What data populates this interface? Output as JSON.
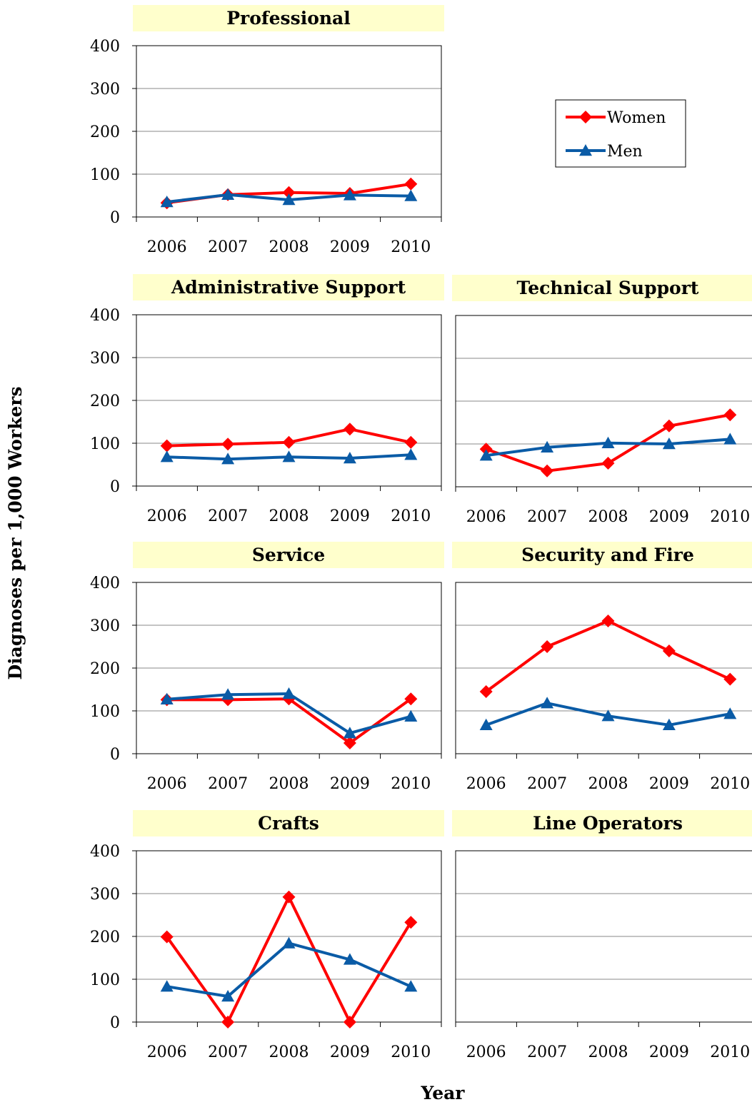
{
  "ylabel": "Diagnoses per 1,000 Workers",
  "xlabel": "Year",
  "legend": {
    "placement": "top-right",
    "items": [
      {
        "label": "Women",
        "color": "#ff0000",
        "marker": "diamond"
      },
      {
        "label": "Men",
        "color": "#0a5ba6",
        "marker": "triangle"
      }
    ]
  },
  "colors": {
    "title_bg": "#ffffcc",
    "women": "#ff0000",
    "men": "#0a5ba6",
    "grid": "#888888"
  },
  "chart_data": [
    {
      "type": "line",
      "title": "Professional",
      "categories": [
        "2006",
        "2007",
        "2008",
        "2009",
        "2010"
      ],
      "yticks": [
        0,
        100,
        200,
        300,
        400
      ],
      "ylim": [
        0,
        400
      ],
      "grid": true,
      "series": [
        {
          "name": "Women",
          "values": [
            33,
            52,
            57,
            55,
            77
          ]
        },
        {
          "name": "Men",
          "values": [
            35,
            52,
            40,
            51,
            49
          ]
        }
      ]
    },
    {
      "type": "line",
      "title": "Administrative Support",
      "categories": [
        "2006",
        "2007",
        "2008",
        "2009",
        "2010"
      ],
      "yticks": [
        0,
        100,
        200,
        300,
        400
      ],
      "ylim": [
        0,
        400
      ],
      "grid": true,
      "series": [
        {
          "name": "Women",
          "values": [
            94,
            98,
            102,
            133,
            102
          ]
        },
        {
          "name": "Men",
          "values": [
            68,
            63,
            68,
            65,
            73
          ]
        }
      ]
    },
    {
      "type": "line",
      "title": "Technical Support",
      "categories": [
        "2006",
        "2007",
        "2008",
        "2009",
        "2010"
      ],
      "yticks": [],
      "ylim": [
        0,
        400
      ],
      "grid": true,
      "series": [
        {
          "name": "Women",
          "values": [
            88,
            37,
            55,
            142,
            168
          ]
        },
        {
          "name": "Men",
          "values": [
            73,
            92,
            102,
            100,
            111
          ]
        }
      ]
    },
    {
      "type": "line",
      "title": "Service",
      "categories": [
        "2006",
        "2007",
        "2008",
        "2009",
        "2010"
      ],
      "yticks": [
        0,
        100,
        200,
        300,
        400
      ],
      "ylim": [
        0,
        400
      ],
      "grid": true,
      "series": [
        {
          "name": "Women",
          "values": [
            126,
            126,
            128,
            25,
            128
          ]
        },
        {
          "name": "Men",
          "values": [
            127,
            138,
            140,
            48,
            87
          ]
        }
      ]
    },
    {
      "type": "line",
      "title": "Security and Fire",
      "categories": [
        "2006",
        "2007",
        "2008",
        "2009",
        "2010"
      ],
      "yticks": [],
      "ylim": [
        0,
        400
      ],
      "grid": true,
      "series": [
        {
          "name": "Women",
          "values": [
            145,
            250,
            310,
            240,
            174
          ]
        },
        {
          "name": "Men",
          "values": [
            67,
            118,
            88,
            67,
            93
          ]
        }
      ]
    },
    {
      "type": "line",
      "title": "Crafts",
      "categories": [
        "2006",
        "2007",
        "2008",
        "2009",
        "2010"
      ],
      "yticks": [
        0,
        100,
        200,
        300,
        400
      ],
      "ylim": [
        0,
        400
      ],
      "grid": true,
      "series": [
        {
          "name": "Women",
          "values": [
            199,
            0,
            292,
            0,
            233
          ]
        },
        {
          "name": "Men",
          "values": [
            83,
            60,
            184,
            146,
            83
          ]
        }
      ]
    },
    {
      "type": "line",
      "title": "Line Operators",
      "categories": [
        "2006",
        "2007",
        "2008",
        "2009",
        "2010"
      ],
      "yticks": [],
      "ylim": [
        0,
        400
      ],
      "grid": true,
      "series": []
    }
  ]
}
